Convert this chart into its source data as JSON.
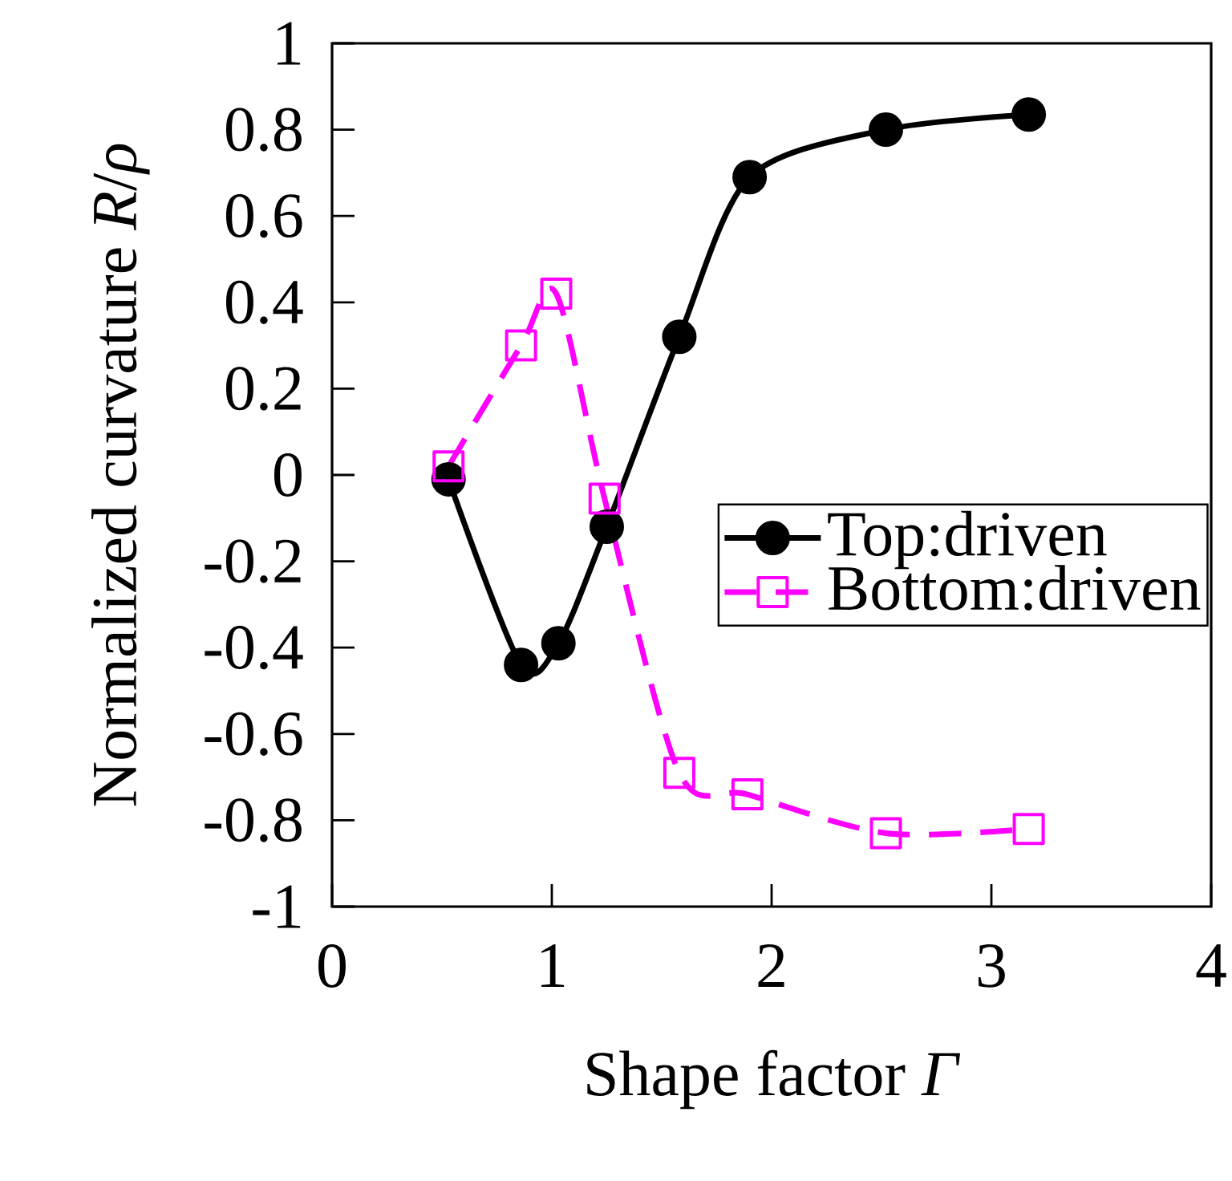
{
  "chart_data": {
    "type": "line",
    "xlabel": "Shape factor *Γ*",
    "ylabel": "Normalized curvature *R*/*ρ*",
    "xlim": [
      0,
      4
    ],
    "ylim": [
      -1,
      1
    ],
    "xticks": [
      0,
      1,
      2,
      3,
      4
    ],
    "yticks": [
      -1,
      -0.8,
      -0.6,
      -0.4,
      -0.2,
      0,
      0.2,
      0.4,
      0.6,
      0.8,
      1
    ],
    "grid": false,
    "legend": "right",
    "series": [
      {
        "name": "Top:driven",
        "color": "#000000",
        "marker": "circle",
        "line_style": "solid",
        "x": [
          0.53,
          0.86,
          1.03,
          1.25,
          1.58,
          1.9,
          2.52,
          3.17
        ],
        "values": [
          -0.01,
          -0.44,
          -0.39,
          -0.12,
          0.32,
          0.69,
          0.8,
          0.835
        ]
      },
      {
        "name": "Bottom:driven",
        "color": "#ff00ff",
        "marker": "square",
        "line_style": "dashed",
        "x": [
          0.53,
          0.86,
          1.02,
          1.24,
          1.58,
          1.89,
          2.52,
          3.17
        ],
        "values": [
          0.02,
          0.3,
          0.42,
          -0.055,
          -0.69,
          -0.74,
          -0.83,
          -0.82
        ]
      }
    ]
  }
}
